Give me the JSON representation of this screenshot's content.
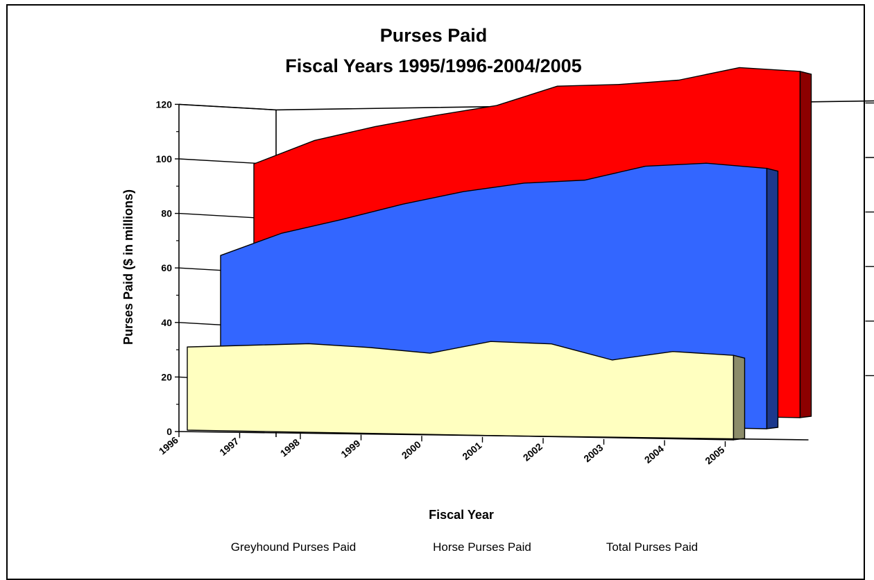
{
  "chart_data": {
    "type": "area",
    "title": "Purses Paid",
    "subtitle": "Fiscal Years 1995/1996-2004/2005",
    "xlabel": "Fiscal Year",
    "ylabel": "Purses Paid ($ in millions)",
    "ylim": [
      0,
      120
    ],
    "yticks": [
      0,
      20,
      40,
      60,
      80,
      100,
      120
    ],
    "categories": [
      "1996",
      "1997",
      "1998",
      "1999",
      "2000",
      "2001",
      "2002",
      "2003",
      "2004",
      "2005"
    ],
    "grid": true,
    "legend_position": "bottom",
    "series": [
      {
        "name": "Greyhound Purses Paid",
        "color": "#FFFFC0",
        "values": [
          30.5,
          31.5,
          32.5,
          31.5,
          29.8,
          34.5,
          34.0,
          28.5,
          32.0,
          31.0
        ]
      },
      {
        "name": "Horse Purses Paid",
        "color": "#3366FF",
        "values": [
          60.0,
          68.5,
          74.0,
          80.0,
          85.0,
          88.5,
          90.0,
          95.5,
          97.0,
          95.5
        ]
      },
      {
        "name": "Total Purses Paid",
        "color": "#FF0000",
        "values": [
          89.5,
          98.5,
          104.0,
          108.5,
          112.5,
          120.0,
          121.0,
          123.0,
          128.0,
          127.0
        ]
      }
    ]
  }
}
